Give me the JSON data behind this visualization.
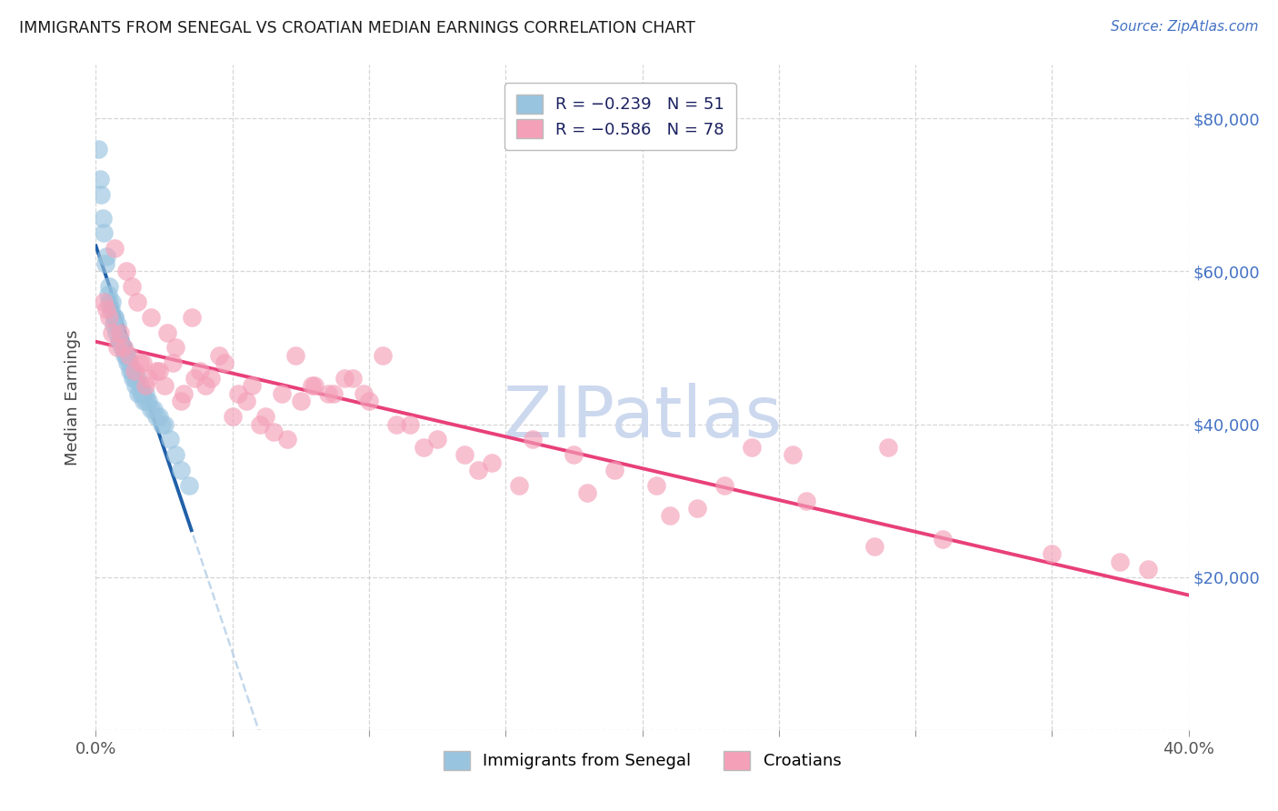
{
  "title": "IMMIGRANTS FROM SENEGAL VS CROATIAN MEDIAN EARNINGS CORRELATION CHART",
  "source": "Source: ZipAtlas.com",
  "ylabel": "Median Earnings",
  "y_ticks": [
    0,
    20000,
    40000,
    60000,
    80000
  ],
  "y_tick_labels": [
    "",
    "$20,000",
    "$40,000",
    "$60,000",
    "$80,000"
  ],
  "x_min": 0.0,
  "x_max": 40.0,
  "y_min": 0,
  "y_max": 87000,
  "color_blue_fill": "#99c4e0",
  "color_pink_fill": "#f4a0b8",
  "color_blue_line": "#2060a8",
  "color_pink_line": "#e8407a",
  "color_blue_dash": "#aac8e4",
  "watermark": "ZIPatlas",
  "watermark_color": "#ccd8ee",
  "senegal_x": [
    0.1,
    0.2,
    0.3,
    0.4,
    0.5,
    0.6,
    0.7,
    0.8,
    0.9,
    1.0,
    1.1,
    1.2,
    1.3,
    1.4,
    1.5,
    1.6,
    1.7,
    1.8,
    1.9,
    2.0,
    2.1,
    2.2,
    2.3,
    2.4,
    2.5,
    2.7,
    2.9,
    3.1,
    3.4,
    0.15,
    0.25,
    0.35,
    0.45,
    0.55,
    0.65,
    0.75,
    0.85,
    0.95,
    1.05,
    1.15,
    1.25,
    1.35,
    1.45,
    1.55,
    1.65,
    1.75,
    1.85,
    0.5,
    0.7,
    0.9,
    1.1
  ],
  "senegal_y": [
    76000,
    70000,
    65000,
    62000,
    58000,
    56000,
    54000,
    53000,
    51000,
    50000,
    49000,
    48000,
    47000,
    46000,
    46000,
    45000,
    44000,
    44000,
    43000,
    42000,
    42000,
    41000,
    41000,
    40000,
    40000,
    38000,
    36000,
    34000,
    32000,
    72000,
    67000,
    61000,
    57000,
    55000,
    53000,
    52000,
    51000,
    50000,
    49000,
    48000,
    47000,
    46000,
    45000,
    44000,
    44000,
    43000,
    43000,
    56000,
    54000,
    51000,
    49000
  ],
  "croatian_x": [
    0.3,
    0.5,
    0.7,
    0.9,
    1.1,
    1.3,
    1.5,
    1.7,
    2.0,
    2.3,
    2.6,
    2.9,
    3.2,
    3.5,
    3.8,
    4.2,
    4.7,
    5.2,
    5.7,
    6.2,
    6.8,
    7.3,
    7.9,
    8.5,
    9.1,
    9.8,
    10.5,
    11.5,
    12.5,
    13.5,
    14.5,
    16.0,
    17.5,
    19.0,
    20.5,
    22.0,
    24.0,
    26.0,
    28.5,
    37.5,
    0.4,
    0.6,
    0.8,
    1.0,
    1.2,
    1.4,
    1.6,
    1.9,
    2.2,
    2.5,
    2.8,
    3.1,
    3.6,
    4.0,
    4.5,
    5.0,
    5.5,
    6.0,
    6.5,
    7.0,
    7.5,
    8.0,
    8.7,
    9.4,
    10.0,
    11.0,
    12.0,
    14.0,
    15.5,
    18.0,
    21.0,
    23.0,
    25.5,
    29.0,
    31.0,
    35.0,
    38.5,
    1.8
  ],
  "croatian_y": [
    56000,
    54000,
    63000,
    52000,
    60000,
    58000,
    56000,
    48000,
    54000,
    47000,
    52000,
    50000,
    44000,
    54000,
    47000,
    46000,
    48000,
    44000,
    45000,
    41000,
    44000,
    49000,
    45000,
    44000,
    46000,
    44000,
    49000,
    40000,
    38000,
    36000,
    35000,
    38000,
    36000,
    34000,
    32000,
    29000,
    37000,
    30000,
    24000,
    22000,
    55000,
    52000,
    50000,
    50000,
    49000,
    47000,
    48000,
    46000,
    47000,
    45000,
    48000,
    43000,
    46000,
    45000,
    49000,
    41000,
    43000,
    40000,
    39000,
    38000,
    43000,
    45000,
    44000,
    46000,
    43000,
    40000,
    37000,
    34000,
    32000,
    31000,
    28000,
    32000,
    36000,
    37000,
    25000,
    23000,
    21000,
    45000
  ]
}
